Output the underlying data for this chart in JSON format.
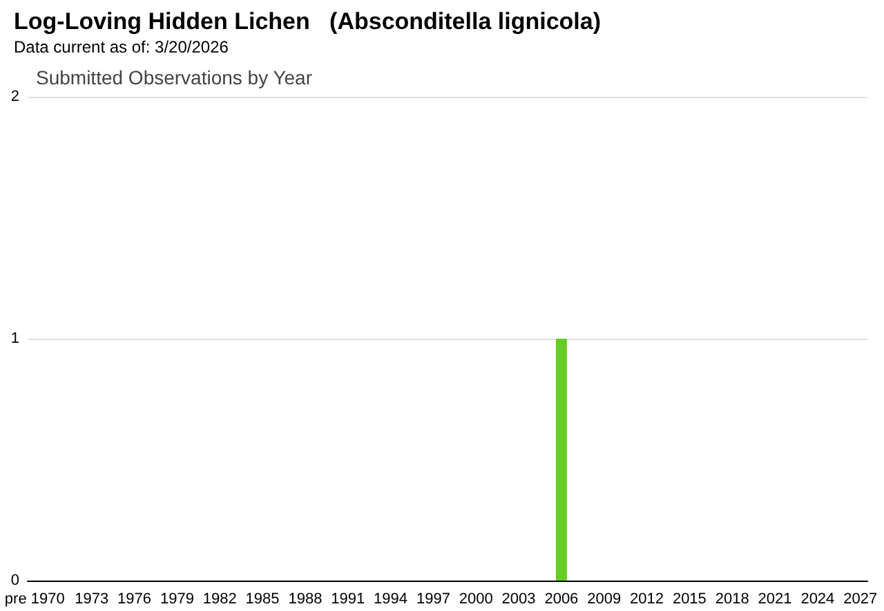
{
  "chart_data": {
    "type": "bar",
    "title": "Log-Loving Hidden Lichen   (Absconditella lignicola)",
    "subtitle": "Data current as of: 3/20/2026",
    "annotations": [
      "Submitted Observations by Year"
    ],
    "categories": [
      "pre 1970",
      null,
      null,
      null,
      "1973",
      null,
      null,
      "1976",
      null,
      null,
      "1979",
      null,
      null,
      "1982",
      null,
      null,
      "1985",
      null,
      null,
      "1988",
      null,
      null,
      "1991",
      null,
      null,
      "1994",
      null,
      null,
      "1997",
      null,
      null,
      "2000",
      null,
      null,
      "2003",
      null,
      null,
      "2006",
      null,
      null,
      "2009",
      null,
      null,
      "2012",
      null,
      null,
      "2015",
      null,
      null,
      "2018",
      null,
      null,
      "2021",
      null,
      null,
      "2024",
      null,
      null,
      "2027"
    ],
    "values": [
      0,
      0,
      0,
      0,
      0,
      0,
      0,
      0,
      0,
      0,
      0,
      0,
      0,
      0,
      0,
      0,
      0,
      0,
      0,
      0,
      0,
      0,
      0,
      0,
      0,
      0,
      0,
      0,
      0,
      0,
      0,
      0,
      0,
      0,
      0,
      0,
      0,
      1,
      0,
      0,
      0,
      0,
      0,
      0,
      0,
      0,
      0,
      0,
      0,
      0,
      0,
      0,
      0,
      0,
      0,
      0,
      0,
      0,
      0
    ],
    "color": "#66cc22",
    "ylim": [
      0,
      2
    ],
    "yticks": [
      0,
      1,
      2
    ],
    "grid": "y"
  }
}
